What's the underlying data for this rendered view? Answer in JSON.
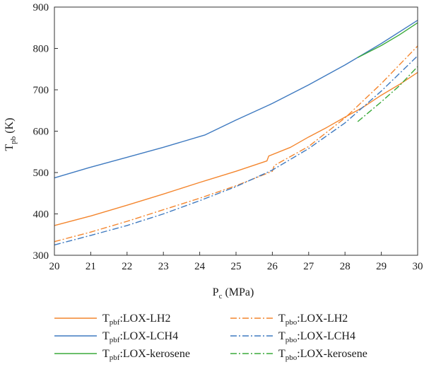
{
  "chart_data": {
    "type": "line",
    "xlabel": {
      "main": "P",
      "sub": "c",
      "rest": " (MPa)"
    },
    "ylabel": {
      "main": "T",
      "sub": "pb",
      "rest": " (K)"
    },
    "xlim": [
      20,
      30
    ],
    "ylim": [
      300,
      900
    ],
    "xticks": [
      20,
      21,
      22,
      23,
      24,
      25,
      26,
      27,
      28,
      29,
      30
    ],
    "yticks": [
      300,
      400,
      500,
      600,
      700,
      800,
      900
    ],
    "grid": false,
    "legend_position": "bottom",
    "colors": {
      "orange": "#f4862e",
      "blue": "#3f7ac0",
      "green": "#3aaa3a"
    },
    "series": [
      {
        "name": "Tpbf:LOX-LH2",
        "label_main": "T",
        "label_sub": "pbf",
        "label_rest": ":LOX-LH2",
        "color": "#f4862e",
        "dash": "solid",
        "points": [
          [
            20,
            372
          ],
          [
            21,
            395
          ],
          [
            22,
            421
          ],
          [
            23,
            448
          ],
          [
            24,
            476
          ],
          [
            25,
            503
          ],
          [
            25.85,
            528
          ],
          [
            25.9,
            540
          ],
          [
            26.5,
            561
          ],
          [
            27,
            586
          ],
          [
            27.5,
            609
          ],
          [
            28,
            634
          ],
          [
            28.5,
            658
          ],
          [
            29,
            687
          ],
          [
            29.5,
            713
          ],
          [
            30,
            742
          ]
        ]
      },
      {
        "name": "Tpbf:LOX-LCH4",
        "label_main": "T",
        "label_sub": "pbf",
        "label_rest": ":LOX-LCH4",
        "color": "#3f7ac0",
        "dash": "solid",
        "points": [
          [
            20,
            487
          ],
          [
            21,
            513
          ],
          [
            22,
            537
          ],
          [
            23,
            561
          ],
          [
            24,
            587
          ],
          [
            24.15,
            591
          ],
          [
            25,
            627
          ],
          [
            26,
            667
          ],
          [
            27,
            712
          ],
          [
            28,
            760
          ],
          [
            29,
            812
          ],
          [
            30,
            868
          ]
        ]
      },
      {
        "name": "Tpbf:LOX-kerosene",
        "label_main": "T",
        "label_sub": "pbf",
        "label_rest": ":LOX-kerosene",
        "color": "#3aaa3a",
        "dash": "solid",
        "points": [
          [
            28.35,
            778
          ],
          [
            29,
            807
          ],
          [
            29.5,
            833
          ],
          [
            30,
            862
          ]
        ]
      },
      {
        "name": "Tpbo:LOX-LH2",
        "label_main": "T",
        "label_sub": "pbo",
        "label_rest": ":LOX-LH2",
        "color": "#f4862e",
        "dash": "dashdot",
        "points": [
          [
            20,
            333
          ],
          [
            21,
            356
          ],
          [
            22,
            382
          ],
          [
            23,
            410
          ],
          [
            24,
            438
          ],
          [
            25,
            468
          ],
          [
            26,
            503
          ],
          [
            26.05,
            517
          ],
          [
            27,
            563
          ],
          [
            28,
            632
          ],
          [
            29,
            715
          ],
          [
            30,
            806
          ]
        ]
      },
      {
        "name": "Tpbo:LOX-LCH4",
        "label_main": "T",
        "label_sub": "pbo",
        "label_rest": ":LOX-LCH4",
        "color": "#3f7ac0",
        "dash": "dashdot",
        "points": [
          [
            20,
            325
          ],
          [
            21,
            348
          ],
          [
            22,
            372
          ],
          [
            23,
            400
          ],
          [
            24,
            432
          ],
          [
            25,
            466
          ],
          [
            26,
            506
          ],
          [
            27,
            558
          ],
          [
            28,
            620
          ],
          [
            29,
            697
          ],
          [
            30,
            782
          ]
        ]
      },
      {
        "name": "Tpbo:LOX-kerosene",
        "label_main": "T",
        "label_sub": "pbo",
        "label_rest": ":LOX-kerosene",
        "color": "#3aaa3a",
        "dash": "dashdot",
        "points": [
          [
            28.35,
            623
          ],
          [
            29,
            671
          ],
          [
            29.5,
            710
          ],
          [
            30,
            756
          ]
        ]
      }
    ]
  }
}
